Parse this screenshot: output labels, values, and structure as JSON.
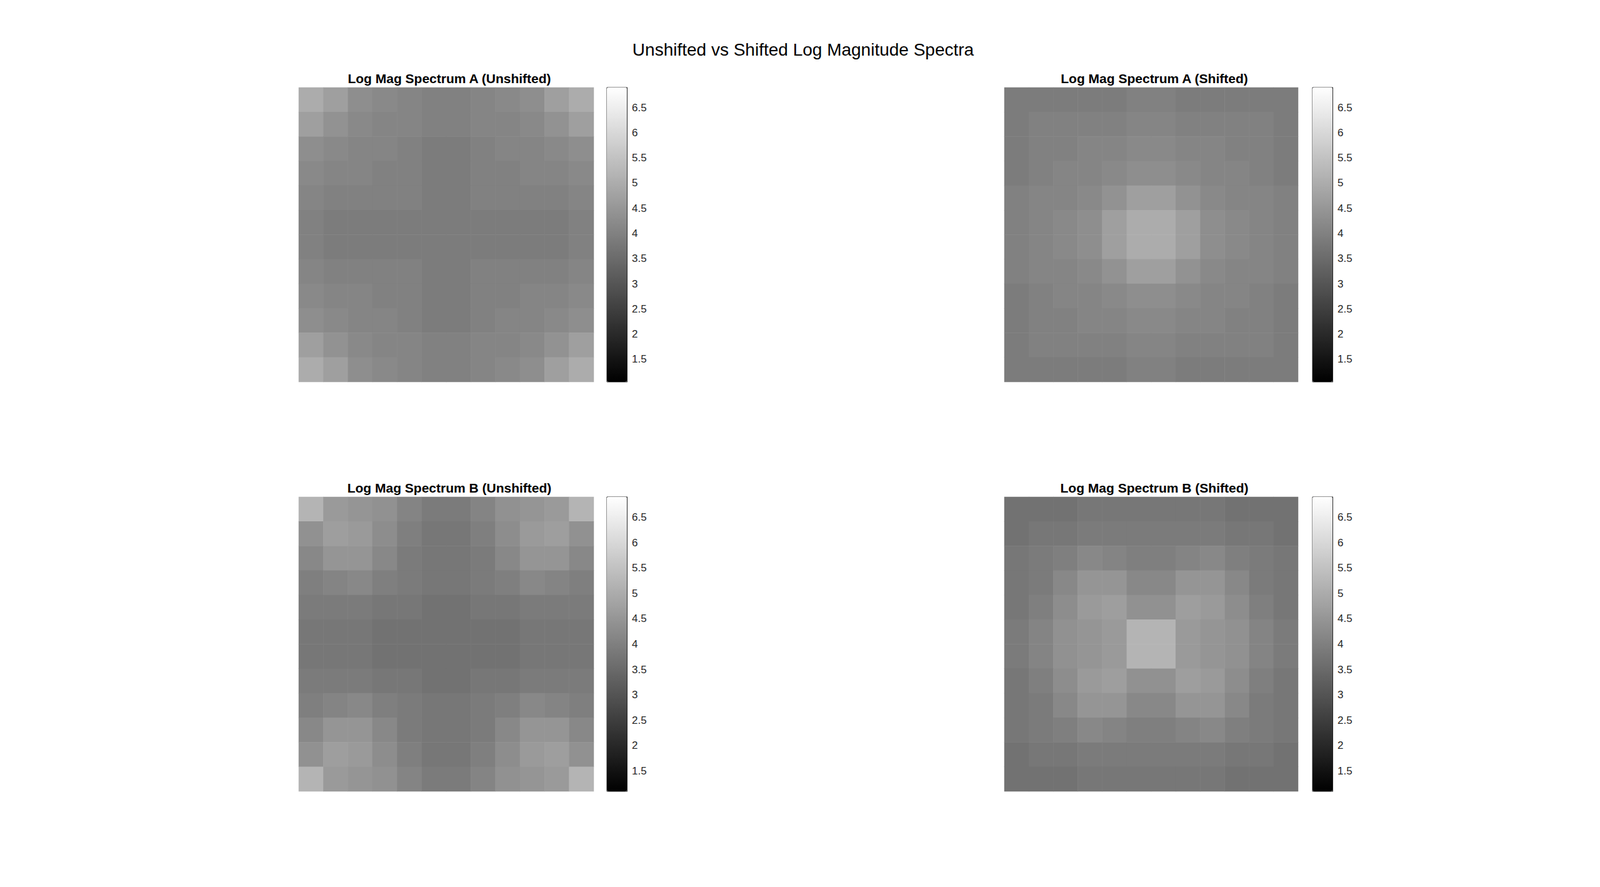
{
  "title": "Unshifted vs Shifted Log Magnitude Spectra",
  "chart_data": [
    {
      "type": "heatmap",
      "title": "Log Mag Spectrum A (Unshifted)",
      "color": "gray",
      "tick_labels": false,
      "clim": [
        1.05,
        6.9
      ],
      "cticks": [
        1.5,
        2,
        2.5,
        3,
        3.5,
        4,
        4.5,
        5,
        5.5,
        6,
        6.5
      ],
      "cells": [
        [
          5.0,
          4.7,
          4.3,
          4.2,
          4.1,
          4.0,
          4.0,
          4.1,
          4.2,
          4.3,
          4.7,
          5.0
        ],
        [
          4.7,
          4.4,
          4.2,
          4.1,
          4.1,
          4.0,
          4.0,
          4.1,
          4.1,
          4.2,
          4.4,
          4.7
        ],
        [
          4.3,
          4.2,
          4.1,
          4.1,
          4.0,
          3.9,
          3.9,
          4.0,
          4.1,
          4.1,
          4.2,
          4.3
        ],
        [
          4.2,
          4.1,
          4.1,
          4.0,
          4.0,
          3.9,
          3.9,
          4.0,
          4.0,
          4.1,
          4.1,
          4.2
        ],
        [
          4.1,
          4.0,
          4.0,
          4.0,
          4.0,
          3.9,
          3.9,
          4.0,
          4.0,
          4.0,
          4.0,
          4.1
        ],
        [
          4.0,
          3.9,
          3.9,
          3.9,
          3.9,
          3.9,
          3.9,
          3.9,
          3.9,
          3.9,
          3.9,
          4.0
        ],
        [
          4.0,
          3.9,
          3.9,
          3.9,
          3.9,
          3.9,
          3.9,
          3.9,
          3.9,
          3.9,
          3.9,
          4.0
        ],
        [
          4.1,
          4.0,
          4.0,
          4.0,
          4.0,
          3.9,
          3.9,
          4.0,
          4.0,
          4.0,
          4.0,
          4.1
        ],
        [
          4.2,
          4.1,
          4.1,
          4.0,
          4.0,
          3.9,
          3.9,
          4.0,
          4.0,
          4.1,
          4.1,
          4.2
        ],
        [
          4.3,
          4.2,
          4.1,
          4.1,
          4.0,
          3.9,
          3.9,
          4.0,
          4.1,
          4.1,
          4.2,
          4.3
        ],
        [
          4.7,
          4.4,
          4.2,
          4.1,
          4.1,
          4.0,
          4.0,
          4.1,
          4.1,
          4.2,
          4.4,
          4.7
        ],
        [
          5.0,
          4.7,
          4.3,
          4.2,
          4.1,
          4.0,
          4.0,
          4.1,
          4.2,
          4.3,
          4.7,
          5.0
        ]
      ]
    },
    {
      "type": "heatmap",
      "title": "Log Mag Spectrum A (Shifted)",
      "color": "gray",
      "tick_labels": false,
      "clim": [
        1.05,
        6.9
      ],
      "cticks": [
        1.5,
        2,
        2.5,
        3,
        3.5,
        4,
        4.5,
        5,
        5.5,
        6,
        6.5
      ],
      "cells": [
        [
          3.9,
          3.9,
          3.9,
          3.9,
          3.9,
          4.0,
          4.0,
          3.9,
          3.9,
          3.9,
          3.9,
          3.9
        ],
        [
          3.9,
          4.0,
          4.0,
          4.0,
          4.0,
          4.1,
          4.1,
          4.0,
          4.0,
          4.0,
          4.0,
          3.9
        ],
        [
          3.9,
          4.0,
          4.0,
          4.1,
          4.1,
          4.2,
          4.2,
          4.1,
          4.1,
          4.0,
          4.0,
          3.9
        ],
        [
          3.9,
          4.0,
          4.1,
          4.1,
          4.2,
          4.3,
          4.3,
          4.2,
          4.1,
          4.1,
          4.0,
          3.9
        ],
        [
          4.0,
          4.1,
          4.1,
          4.2,
          4.4,
          4.7,
          4.7,
          4.4,
          4.2,
          4.1,
          4.1,
          4.0
        ],
        [
          4.0,
          4.1,
          4.2,
          4.3,
          4.7,
          5.0,
          5.0,
          4.7,
          4.3,
          4.2,
          4.1,
          4.0
        ],
        [
          4.0,
          4.1,
          4.2,
          4.3,
          4.7,
          5.0,
          5.0,
          4.7,
          4.3,
          4.2,
          4.1,
          4.0
        ],
        [
          4.0,
          4.1,
          4.1,
          4.2,
          4.4,
          4.7,
          4.7,
          4.4,
          4.2,
          4.1,
          4.1,
          4.0
        ],
        [
          3.9,
          4.0,
          4.1,
          4.1,
          4.2,
          4.3,
          4.3,
          4.2,
          4.1,
          4.1,
          4.0,
          3.9
        ],
        [
          3.9,
          4.0,
          4.0,
          4.1,
          4.1,
          4.2,
          4.2,
          4.1,
          4.1,
          4.0,
          4.0,
          3.9
        ],
        [
          3.9,
          4.0,
          4.0,
          4.0,
          4.0,
          4.1,
          4.1,
          4.0,
          4.0,
          4.0,
          4.0,
          3.9
        ],
        [
          3.9,
          3.9,
          3.9,
          3.9,
          3.9,
          4.0,
          4.0,
          3.9,
          3.9,
          3.9,
          3.9,
          3.9
        ]
      ]
    },
    {
      "type": "heatmap",
      "title": "Log Mag Spectrum B (Unshifted)",
      "color": "gray",
      "tick_labels": false,
      "clim": [
        1.1,
        6.9
      ],
      "cticks": [
        1.5,
        2,
        2.5,
        3,
        3.5,
        4,
        4.5,
        5,
        5.5,
        6,
        6.5
      ],
      "cells": [
        [
          5.2,
          4.6,
          4.5,
          4.4,
          4.1,
          3.9,
          3.9,
          4.1,
          4.4,
          4.5,
          4.6,
          5.2
        ],
        [
          4.4,
          4.7,
          4.6,
          4.3,
          4.0,
          3.8,
          3.8,
          4.0,
          4.3,
          4.6,
          4.7,
          4.4
        ],
        [
          4.2,
          4.5,
          4.5,
          4.2,
          3.9,
          3.8,
          3.8,
          3.9,
          4.2,
          4.5,
          4.5,
          4.2
        ],
        [
          4.0,
          4.1,
          4.2,
          4.0,
          3.9,
          3.8,
          3.8,
          3.9,
          4.0,
          4.2,
          4.1,
          4.0
        ],
        [
          3.9,
          3.9,
          3.9,
          3.8,
          3.8,
          3.7,
          3.7,
          3.8,
          3.8,
          3.9,
          3.9,
          3.9
        ],
        [
          3.8,
          3.8,
          3.8,
          3.7,
          3.7,
          3.7,
          3.7,
          3.7,
          3.7,
          3.8,
          3.8,
          3.8
        ],
        [
          3.8,
          3.8,
          3.8,
          3.7,
          3.7,
          3.7,
          3.7,
          3.7,
          3.7,
          3.8,
          3.8,
          3.8
        ],
        [
          3.9,
          3.9,
          3.9,
          3.8,
          3.8,
          3.7,
          3.7,
          3.8,
          3.8,
          3.9,
          3.9,
          3.9
        ],
        [
          4.0,
          4.1,
          4.2,
          4.0,
          3.9,
          3.8,
          3.8,
          3.9,
          4.0,
          4.2,
          4.1,
          4.0
        ],
        [
          4.2,
          4.5,
          4.5,
          4.2,
          3.9,
          3.8,
          3.8,
          3.9,
          4.2,
          4.5,
          4.5,
          4.2
        ],
        [
          4.4,
          4.7,
          4.6,
          4.3,
          4.0,
          3.8,
          3.8,
          4.0,
          4.3,
          4.6,
          4.7,
          4.4
        ],
        [
          5.2,
          4.6,
          4.5,
          4.4,
          4.1,
          3.9,
          3.9,
          4.1,
          4.4,
          4.5,
          4.6,
          5.2
        ]
      ]
    },
    {
      "type": "heatmap",
      "title": "Log Mag Spectrum B (Shifted)",
      "color": "gray",
      "tick_labels": false,
      "clim": [
        1.1,
        6.9
      ],
      "cticks": [
        1.5,
        2,
        2.5,
        3,
        3.5,
        4,
        4.5,
        5,
        5.5,
        6,
        6.5
      ],
      "cells": [
        [
          3.7,
          3.7,
          3.7,
          3.8,
          3.8,
          3.8,
          3.8,
          3.8,
          3.8,
          3.7,
          3.7,
          3.7
        ],
        [
          3.7,
          3.8,
          3.8,
          3.9,
          3.9,
          3.9,
          3.9,
          3.9,
          3.9,
          3.8,
          3.8,
          3.7
        ],
        [
          3.8,
          3.9,
          4.0,
          4.2,
          4.1,
          4.0,
          4.0,
          4.1,
          4.2,
          4.0,
          3.9,
          3.8
        ],
        [
          3.8,
          3.9,
          4.2,
          4.5,
          4.5,
          4.2,
          4.2,
          4.5,
          4.5,
          4.2,
          3.9,
          3.8
        ],
        [
          3.8,
          4.0,
          4.3,
          4.6,
          4.7,
          4.4,
          4.4,
          4.7,
          4.6,
          4.3,
          4.0,
          3.8
        ],
        [
          3.9,
          4.1,
          4.4,
          4.5,
          4.6,
          5.2,
          5.2,
          4.6,
          4.5,
          4.4,
          4.1,
          3.9
        ],
        [
          3.9,
          4.1,
          4.4,
          4.5,
          4.6,
          5.2,
          5.2,
          4.6,
          4.5,
          4.4,
          4.1,
          3.9
        ],
        [
          3.8,
          4.0,
          4.3,
          4.6,
          4.7,
          4.4,
          4.4,
          4.7,
          4.6,
          4.3,
          4.0,
          3.8
        ],
        [
          3.8,
          3.9,
          4.2,
          4.5,
          4.5,
          4.2,
          4.2,
          4.5,
          4.5,
          4.2,
          3.9,
          3.8
        ],
        [
          3.8,
          3.9,
          4.0,
          4.2,
          4.1,
          4.0,
          4.0,
          4.1,
          4.2,
          4.0,
          3.9,
          3.8
        ],
        [
          3.7,
          3.8,
          3.8,
          3.9,
          3.9,
          3.9,
          3.9,
          3.9,
          3.9,
          3.8,
          3.8,
          3.7
        ],
        [
          3.7,
          3.7,
          3.7,
          3.8,
          3.8,
          3.8,
          3.8,
          3.8,
          3.8,
          3.7,
          3.7,
          3.7
        ]
      ]
    }
  ]
}
